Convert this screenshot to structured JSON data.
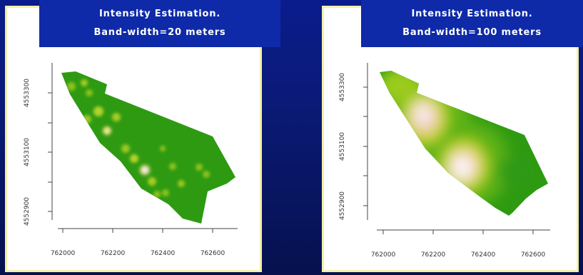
{
  "colors": {
    "background": "#0a1c8c",
    "banner": "#0e2aa8",
    "panel_border": "#f3f0a8",
    "low_intensity": "#2e9a12",
    "high_intensity": "#f6e2e8"
  },
  "chart_data": [
    {
      "type": "heatmap",
      "title_line1": "Intensity Estimation.",
      "title_line2": "Band-width=20 meters",
      "xlabel": "",
      "ylabel": "",
      "x_ticks": [
        "762000",
        "762200",
        "762400",
        "762600"
      ],
      "y_ticks": [
        "4552900",
        "4553100",
        "4553300"
      ],
      "xlim": [
        761975,
        762700
      ],
      "ylim": [
        4552820,
        4553390
      ],
      "grid": false
    },
    {
      "type": "heatmap",
      "title_line1": "Intensity Estimation.",
      "title_line2": "Band-width=100 meters",
      "xlabel": "",
      "ylabel": "",
      "x_ticks": [
        "762000",
        "762200",
        "762400",
        "762600"
      ],
      "y_ticks": [
        "4552900",
        "4553100",
        "4553300"
      ],
      "xlim": [
        761975,
        762700
      ],
      "ylim": [
        4552820,
        4553390
      ],
      "grid": false
    }
  ]
}
